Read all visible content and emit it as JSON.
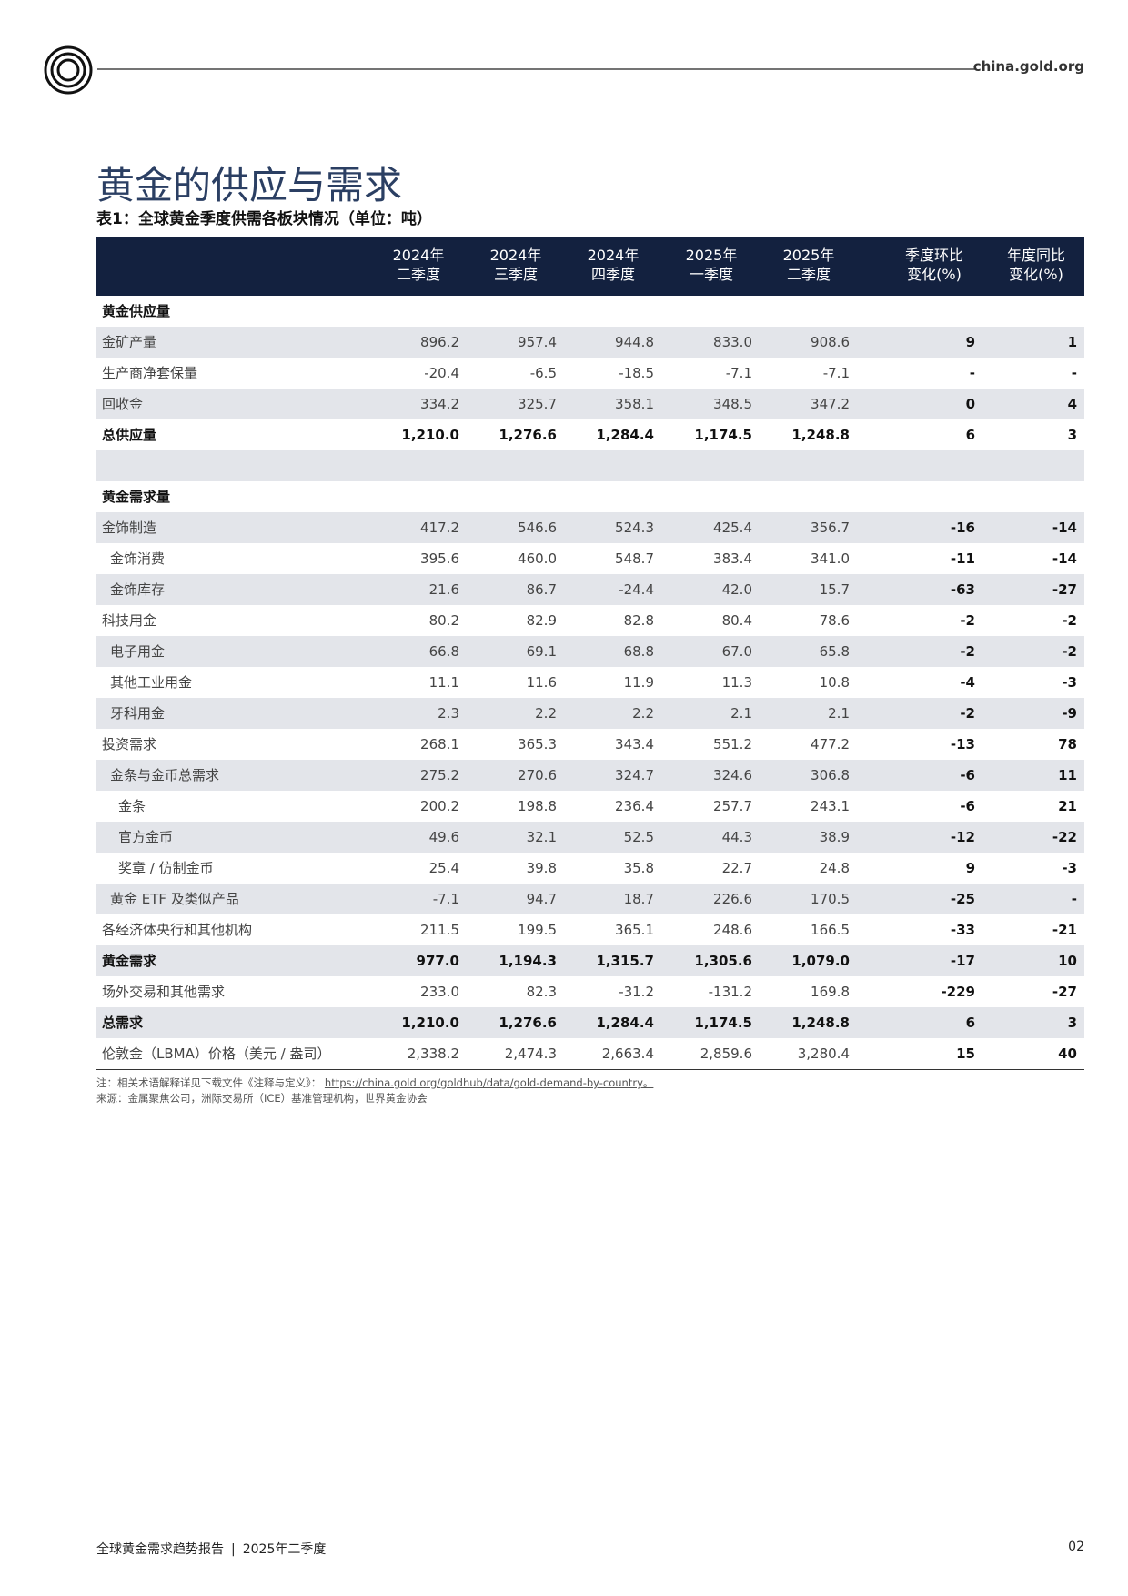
{
  "header": {
    "site": "china.gold.org"
  },
  "title": "黄金的供应与需求",
  "subtitle": "表1：全球黄金季度供需各板块情况（单位：吨）",
  "table": {
    "columns": [
      [
        "2024年",
        "二季度"
      ],
      [
        "2024年",
        "三季度"
      ],
      [
        "2024年",
        "四季度"
      ],
      [
        "2025年",
        "一季度"
      ],
      [
        "2025年",
        "二季度"
      ],
      [
        "季度环比",
        "变化(%)"
      ],
      [
        "年度同比",
        "变化(%)"
      ]
    ],
    "rows": [
      [
        "黄金供应量"
      ],
      [
        "金矿产量",
        "896.2",
        "957.4",
        "944.8",
        "833.0",
        "908.6",
        "9",
        "1"
      ],
      [
        "生产商净套保量",
        "-20.4",
        "-6.5",
        "-18.5",
        "-7.1",
        "-7.1",
        "-",
        "-"
      ],
      [
        "回收金",
        "334.2",
        "325.7",
        "358.1",
        "348.5",
        "347.2",
        "0",
        "4"
      ],
      [
        "总供应量",
        "1,210.0",
        "1,276.6",
        "1,284.4",
        "1,174.5",
        "1,248.8",
        "6",
        "3"
      ],
      [],
      [
        "黄金需求量"
      ],
      [
        "金饰制造",
        "417.2",
        "546.6",
        "524.3",
        "425.4",
        "356.7",
        "-16",
        "-14"
      ],
      [
        "金饰消费",
        "395.6",
        "460.0",
        "548.7",
        "383.4",
        "341.0",
        "-11",
        "-14"
      ],
      [
        "金饰库存",
        "21.6",
        "86.7",
        "-24.4",
        "42.0",
        "15.7",
        "-63",
        "-27"
      ],
      [
        "科技用金",
        "80.2",
        "82.9",
        "82.8",
        "80.4",
        "78.6",
        "-2",
        "-2"
      ],
      [
        "电子用金",
        "66.8",
        "69.1",
        "68.8",
        "67.0",
        "65.8",
        "-2",
        "-2"
      ],
      [
        "其他工业用金",
        "11.1",
        "11.6",
        "11.9",
        "11.3",
        "10.8",
        "-4",
        "-3"
      ],
      [
        "牙科用金",
        "2.3",
        "2.2",
        "2.2",
        "2.1",
        "2.1",
        "-2",
        "-9"
      ],
      [
        "投资需求",
        "268.1",
        "365.3",
        "343.4",
        "551.2",
        "477.2",
        "-13",
        "78"
      ],
      [
        "金条与金币总需求",
        "275.2",
        "270.6",
        "324.7",
        "324.6",
        "306.8",
        "-6",
        "11"
      ],
      [
        "金条",
        "200.2",
        "198.8",
        "236.4",
        "257.7",
        "243.1",
        "-6",
        "21"
      ],
      [
        "官方金币",
        "49.6",
        "32.1",
        "52.5",
        "44.3",
        "38.9",
        "-12",
        "-22"
      ],
      [
        "奖章 / 仿制金币",
        "25.4",
        "39.8",
        "35.8",
        "22.7",
        "24.8",
        "9",
        "-3"
      ],
      [
        "黄金 ETF 及类似产品",
        "-7.1",
        "94.7",
        "18.7",
        "226.6",
        "170.5",
        "-25",
        "-"
      ],
      [
        "各经济体央行和其他机构",
        "211.5",
        "199.5",
        "365.1",
        "248.6",
        "166.5",
        "-33",
        "-21"
      ],
      [
        "黄金需求",
        "977.0",
        "1,194.3",
        "1,315.7",
        "1,305.6",
        "1,079.0",
        "-17",
        "10"
      ],
      [
        "场外交易和其他需求",
        "233.0",
        "82.3",
        "-31.2",
        "-131.2",
        "169.8",
        "-229",
        "-27"
      ],
      [
        "总需求",
        "1,210.0",
        "1,276.6",
        "1,284.4",
        "1,174.5",
        "1,248.8",
        "6",
        "3"
      ],
      [
        "伦敦金（LBMA）价格（美元 / 盎司）",
        "2,338.2",
        "2,474.3",
        "2,663.4",
        "2,859.6",
        "3,280.4",
        "15",
        "40"
      ]
    ]
  },
  "notes": {
    "note": "注：相关术语解释详见下载文件《注释与定义》：",
    "link": "https://china.gold.org/goldhub/data/gold-demand-by-country。",
    "source": "来源：金属聚焦公司，洲际交易所（ICE）基准管理机构，世界黄金协会"
  },
  "footer": {
    "report": "全球黄金需求趋势报告",
    "period": "2025年二季度",
    "page": "02"
  }
}
